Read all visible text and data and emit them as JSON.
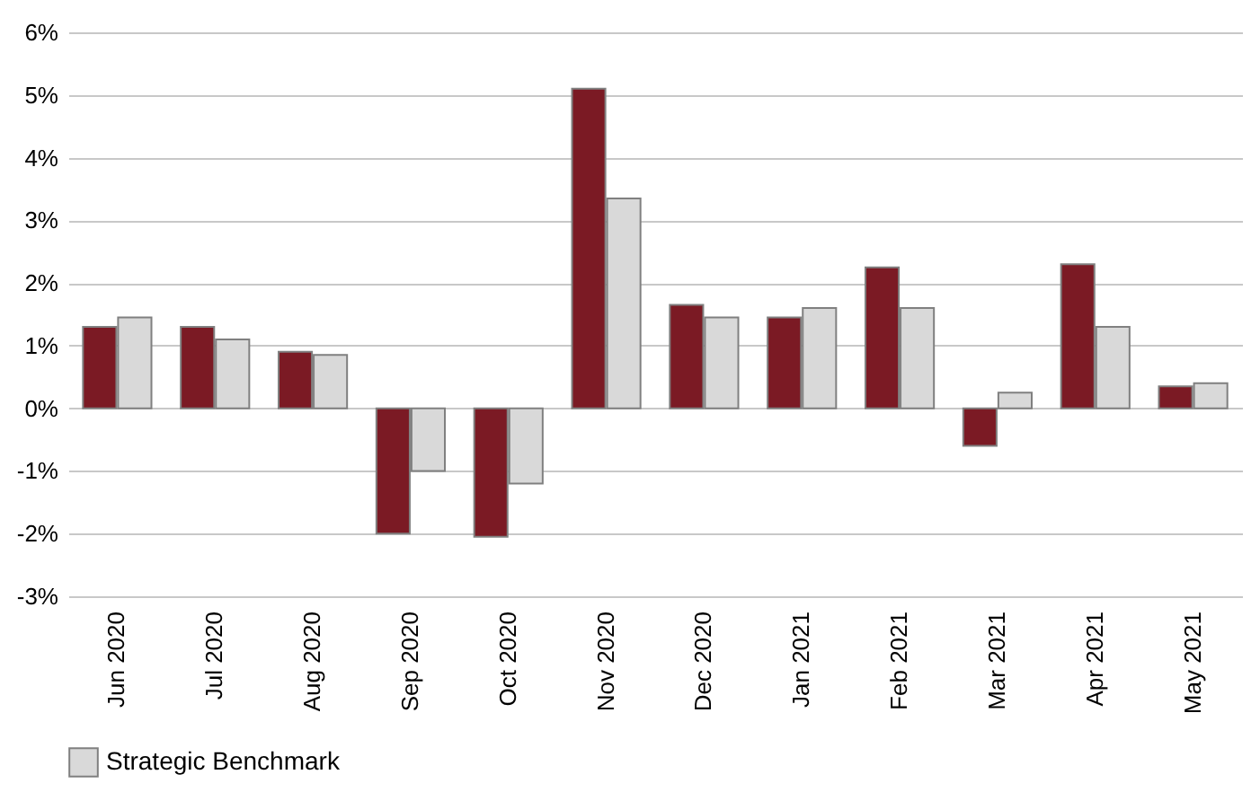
{
  "chart_data": {
    "type": "bar",
    "categories": [
      "Jun 2020",
      "Jul 2020",
      "Aug 2020",
      "Sep 2020",
      "Oct 2020",
      "Nov 2020",
      "Dec 2020",
      "Jan 2021",
      "Feb 2021",
      "Mar 2021",
      "Apr 2021",
      "May 2021"
    ],
    "series": [
      {
        "color": "#7b1a24",
        "values": [
          1.3,
          1.3,
          0.9,
          -2.0,
          -2.05,
          5.1,
          1.65,
          1.45,
          2.25,
          -0.6,
          2.3,
          0.35
        ]
      },
      {
        "name": "Strategic Benchmark",
        "color": "#d9d9d9",
        "values": [
          1.45,
          1.1,
          0.85,
          -1.0,
          -1.2,
          3.35,
          1.45,
          1.6,
          1.6,
          0.25,
          1.3,
          0.4
        ]
      }
    ],
    "ylim": [
      -3,
      6
    ],
    "yticks": [
      {
        "value": -3,
        "label": "-3%"
      },
      {
        "value": -2,
        "label": "-2%"
      },
      {
        "value": -1,
        "label": "-1%"
      },
      {
        "value": 0,
        "label": "0%"
      },
      {
        "value": 1,
        "label": "1%"
      },
      {
        "value": 2,
        "label": "2%"
      },
      {
        "value": 3,
        "label": "3%"
      },
      {
        "value": 4,
        "label": "4%"
      },
      {
        "value": 5,
        "label": "5%"
      },
      {
        "value": 6,
        "label": "6%"
      }
    ],
    "grid": "y",
    "legend": "bottom"
  }
}
